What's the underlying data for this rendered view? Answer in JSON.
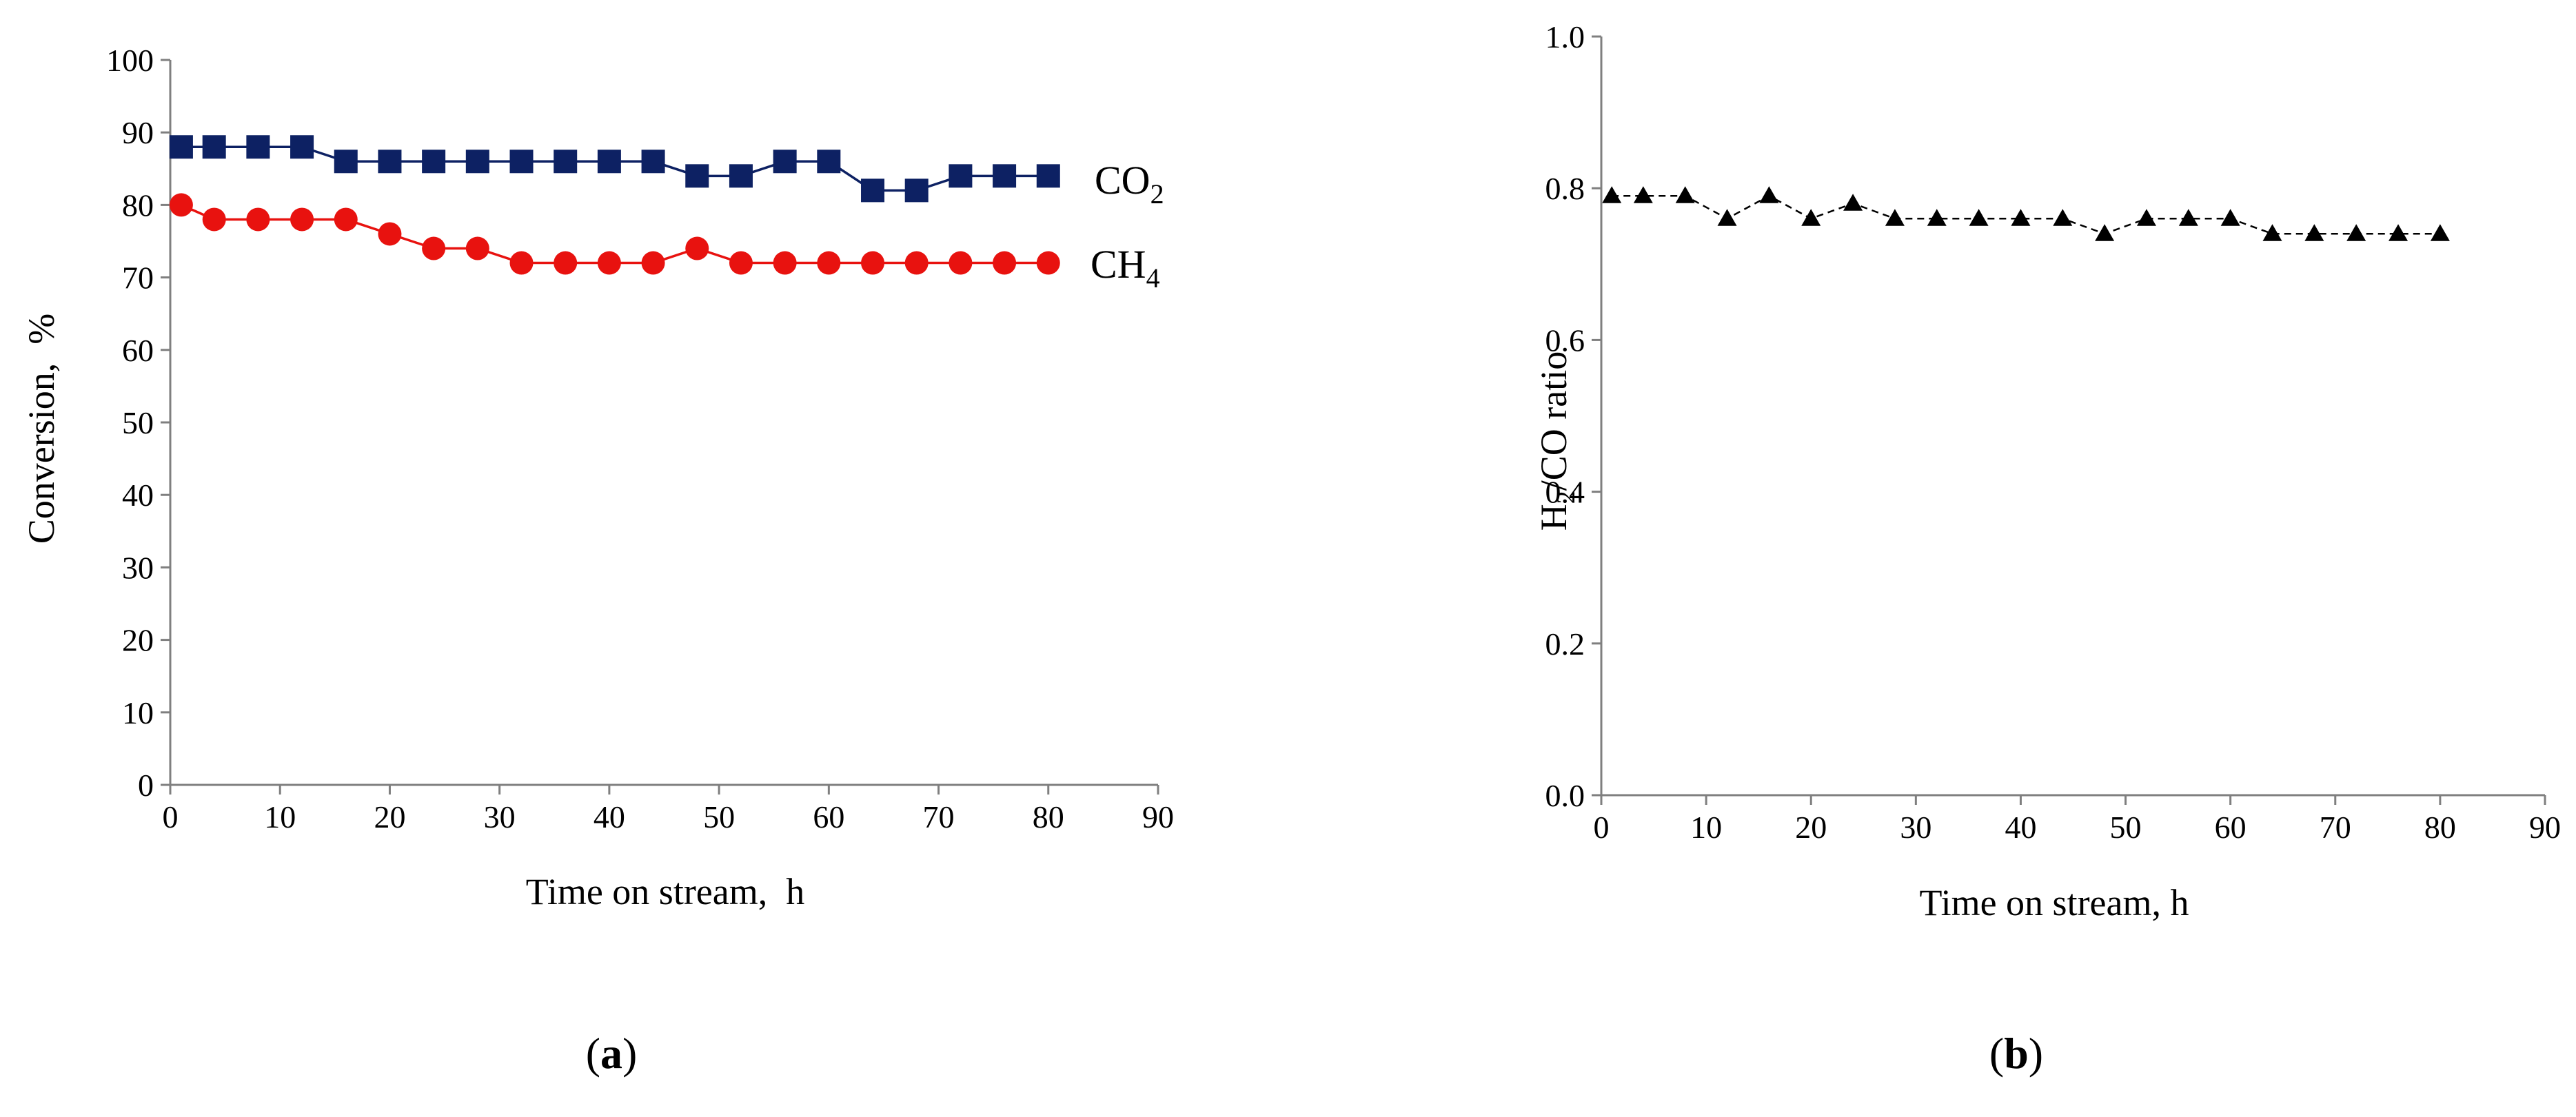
{
  "chart_data": [
    {
      "type": "line",
      "panel_label": "a",
      "xlabel": "Time on stream,  h",
      "ylabel": "Conversion,  %",
      "xlim": [
        0,
        90
      ],
      "ylim": [
        0,
        100
      ],
      "xticks": [
        0,
        10,
        20,
        30,
        40,
        50,
        60,
        70,
        80,
        90
      ],
      "yticks": [
        0,
        10,
        20,
        30,
        40,
        50,
        60,
        70,
        80,
        90,
        100
      ],
      "grid": false,
      "series": [
        {
          "name": "CO",
          "subscript": "2",
          "marker": "square",
          "color": "#0d2163",
          "x": [
            1,
            4,
            8,
            12,
            16,
            20,
            24,
            28,
            32,
            36,
            40,
            44,
            48,
            52,
            56,
            60,
            64,
            68,
            72,
            76,
            80
          ],
          "y": [
            88,
            88,
            88,
            88,
            86,
            86,
            86,
            86,
            86,
            86,
            86,
            86,
            84,
            84,
            86,
            86,
            82,
            82,
            84,
            84,
            84
          ]
        },
        {
          "name": "CH",
          "subscript": "4",
          "marker": "circle",
          "color": "#e8120f",
          "x": [
            1,
            4,
            8,
            12,
            16,
            20,
            24,
            28,
            32,
            36,
            40,
            44,
            48,
            52,
            56,
            60,
            64,
            68,
            72,
            76,
            80
          ],
          "y": [
            80,
            78,
            78,
            78,
            78,
            76,
            74,
            74,
            72,
            72,
            72,
            72,
            74,
            72,
            72,
            72,
            72,
            72,
            72,
            72,
            72
          ]
        }
      ]
    },
    {
      "type": "line",
      "panel_label": "b",
      "xlabel": "Time on stream, h",
      "ylabel_main": "H",
      "ylabel_sub": "2",
      "ylabel_rest": "/CO ratio",
      "xlim": [
        0,
        90
      ],
      "ylim": [
        0,
        1
      ],
      "xticks": [
        0,
        10,
        20,
        30,
        40,
        50,
        60,
        70,
        80,
        90
      ],
      "yticks": [
        "0.0",
        "0.2",
        "0.4",
        "0.6",
        "0.8",
        "1.0"
      ],
      "grid": false,
      "series": [
        {
          "name": "H2/CO ratio",
          "marker": "triangle",
          "line_style": "dashed",
          "color": "#000000",
          "x": [
            1,
            4,
            8,
            12,
            16,
            20,
            24,
            28,
            32,
            36,
            40,
            44,
            48,
            52,
            56,
            60,
            64,
            68,
            72,
            76,
            80
          ],
          "y": [
            0.79,
            0.79,
            0.79,
            0.76,
            0.79,
            0.76,
            0.78,
            0.76,
            0.76,
            0.76,
            0.76,
            0.76,
            0.74,
            0.76,
            0.76,
            0.76,
            0.74,
            0.74,
            0.74,
            0.74,
            0.74
          ]
        }
      ]
    }
  ]
}
